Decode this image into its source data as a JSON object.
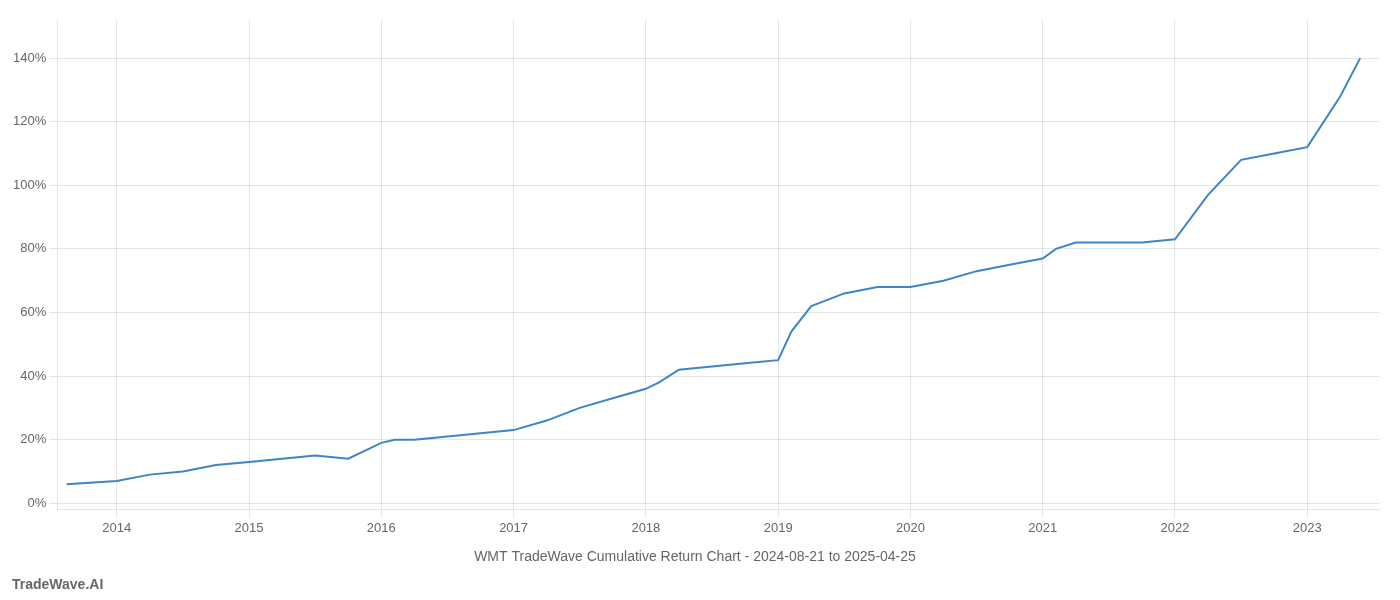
{
  "chart_data": {
    "type": "line",
    "title": "WMT TradeWave Cumulative Return Chart - 2024-08-21 to 2025-04-25",
    "annotations": [
      "TradeWave.AI"
    ],
    "x": [
      2013.62,
      2014.0,
      2014.25,
      2014.5,
      2014.75,
      2015.0,
      2015.25,
      2015.5,
      2015.75,
      2016.0,
      2016.1,
      2016.25,
      2016.5,
      2016.75,
      2017.0,
      2017.25,
      2017.5,
      2017.75,
      2018.0,
      2018.1,
      2018.25,
      2018.5,
      2018.75,
      2019.0,
      2019.1,
      2019.25,
      2019.5,
      2019.75,
      2020.0,
      2020.25,
      2020.5,
      2020.75,
      2021.0,
      2021.1,
      2021.25,
      2021.5,
      2021.75,
      2022.0,
      2022.25,
      2022.5,
      2022.75,
      2023.0,
      2023.25,
      2023.4
    ],
    "values": [
      6,
      7,
      9,
      10,
      12,
      13,
      14,
      15,
      14,
      19,
      20,
      20,
      21,
      22,
      23,
      26,
      30,
      33,
      36,
      38,
      42,
      43,
      44,
      45,
      54,
      62,
      66,
      68,
      68,
      70,
      73,
      75,
      77,
      80,
      82,
      82,
      82,
      83,
      97,
      108,
      110,
      112,
      128,
      140
    ],
    "color": "#3d85c8",
    "xlim": [
      2013.55,
      2023.55
    ],
    "xticks": [
      2014,
      2015,
      2016,
      2017,
      2018,
      2019,
      2020,
      2021,
      2022,
      2023
    ],
    "ylim": [
      -2,
      152
    ],
    "yticks": [
      {
        "value": 0,
        "label": "0%"
      },
      {
        "value": 20,
        "label": "20%"
      },
      {
        "value": 40,
        "label": "40%"
      },
      {
        "value": 60,
        "label": "60%"
      },
      {
        "value": 80,
        "label": "80%"
      },
      {
        "value": 100,
        "label": "100%"
      },
      {
        "value": 120,
        "label": "120%"
      },
      {
        "value": 140,
        "label": "140%"
      }
    ],
    "grid": true
  }
}
